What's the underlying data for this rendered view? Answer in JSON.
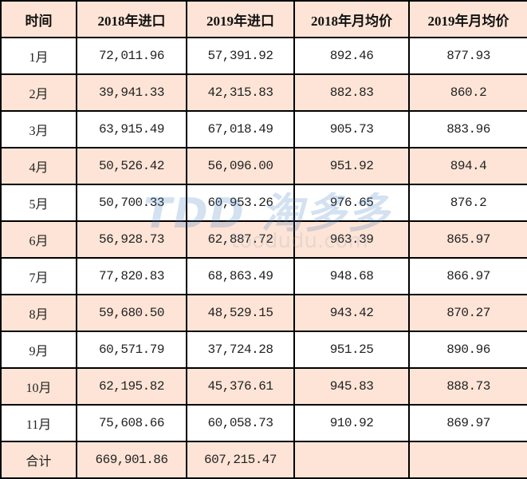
{
  "table": {
    "headers": [
      "时间",
      "2018年进口",
      "2019年进口",
      "2018年月均价",
      "2019年月均价"
    ],
    "rows": [
      [
        "1月",
        "72,011.96",
        "57,391.92",
        "892.46",
        "877.93"
      ],
      [
        "2月",
        "39,941.33",
        "42,315.83",
        "882.83",
        "860.2"
      ],
      [
        "3月",
        "63,915.49",
        "67,018.49",
        "905.73",
        "883.96"
      ],
      [
        "4月",
        "50,526.42",
        "56,096.00",
        "951.92",
        "894.4"
      ],
      [
        "5月",
        "50,700.33",
        "60,953.26",
        "976.65",
        "876.2"
      ],
      [
        "6月",
        "56,928.73",
        "62,887.72",
        "963.39",
        "865.97"
      ],
      [
        "7月",
        "77,820.83",
        "68,863.49",
        "948.68",
        "866.97"
      ],
      [
        "8月",
        "59,680.50",
        "48,529.15",
        "943.42",
        "870.27"
      ],
      [
        "9月",
        "60,571.79",
        "37,724.28",
        "951.25",
        "890.96"
      ],
      [
        "10月",
        "62,195.82",
        "45,376.61",
        "945.83",
        "888.73"
      ],
      [
        "11月",
        "75,608.66",
        "60,058.73",
        "910.92",
        "869.97"
      ]
    ],
    "total": [
      "合计",
      "669,901.86",
      "607,215.47",
      "",
      ""
    ]
  },
  "watermark": {
    "logo": "TDD 淘多多",
    "url": "toodudu.com"
  },
  "colors": {
    "header_bg": "#fde4d6",
    "alt_row_bg": "#fde4d6",
    "border": "#000000"
  }
}
